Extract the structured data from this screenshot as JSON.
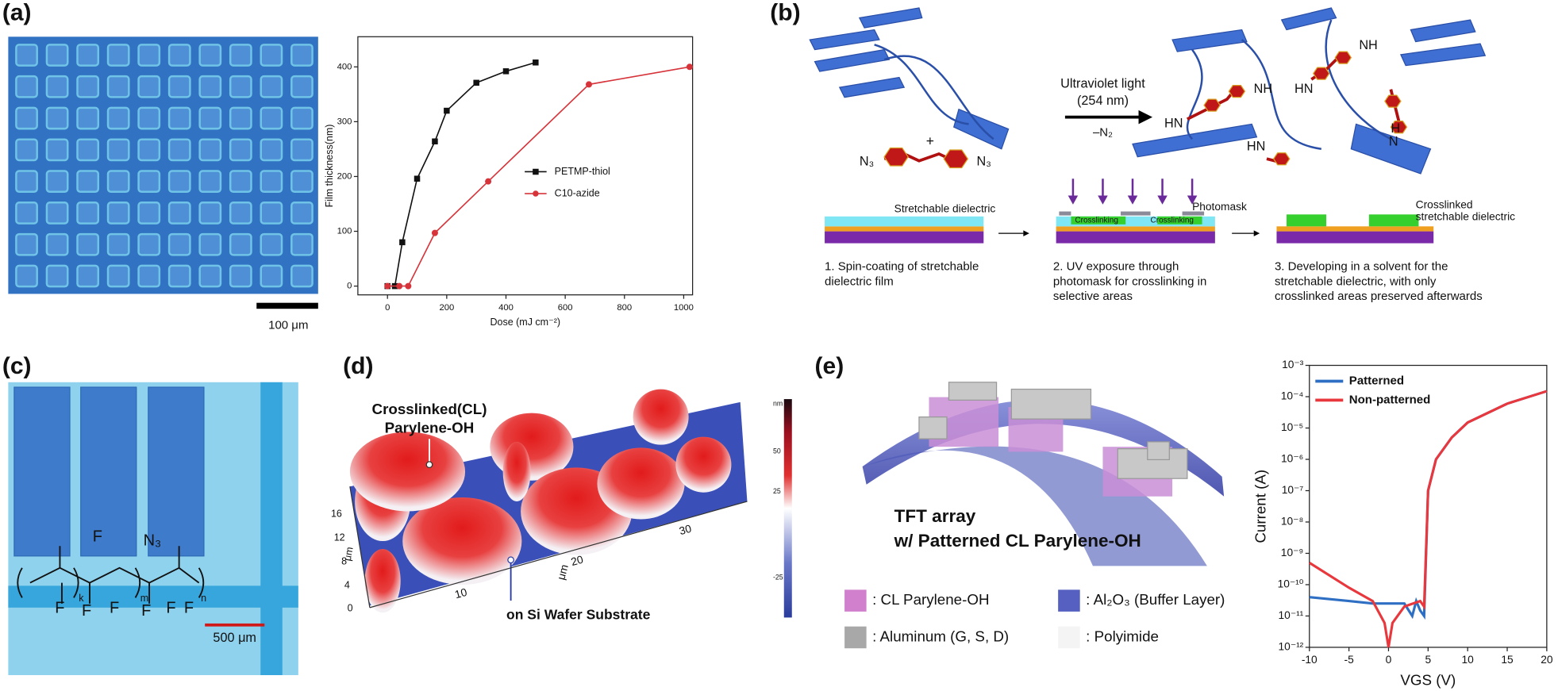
{
  "panel_labels": [
    "(a)",
    "(b)",
    "(c)",
    "(d)",
    "(e)"
  ],
  "a": {
    "scale_bar": "100 μm"
  },
  "b": {
    "ultraviolet": "Ultraviolet light",
    "wavelength": "(254 nm)",
    "loss": "–N₂",
    "plus": "+",
    "n3_left": "N₃",
    "n3_right": "N₃",
    "amines": [
      "NH",
      "NH",
      "HN",
      "HN",
      "HN",
      "H",
      "N"
    ],
    "layer_left": "Stretchable dielectric",
    "crosslinking": [
      "Crosslinking",
      "Crosslinking"
    ],
    "photomask": "Photomask",
    "layer_right": [
      "Crosslinked",
      "stretchable dielectric"
    ],
    "steps": [
      [
        "1. Spin-coating of stretchable",
        "dielectric film"
      ],
      [
        "2. UV exposure through",
        "photomask for crosslinking in",
        "selective areas"
      ],
      [
        "3. Developing in a solvent for the",
        "stretchable dielectric, with only",
        "crosslinked areas preserved afterwards"
      ]
    ]
  },
  "c": {
    "scale_bar": "500 μm",
    "atoms": [
      "F",
      "N₃",
      "F",
      "F",
      "F",
      "F",
      "F",
      "F"
    ],
    "subscripts": [
      "k",
      "m",
      "n"
    ]
  },
  "d": {
    "cl_label": [
      "Crosslinked(CL)",
      "Parylene-OH"
    ],
    "substrate_label": "on Si Wafer Substrate",
    "y_ticks": [
      "16",
      "12",
      "8",
      "4",
      "0"
    ],
    "y_unit": "μm",
    "x_ticks": [
      "10",
      "20",
      "30"
    ],
    "x_unit": "μm",
    "colorbar_unit": "nm",
    "colorbar_ticks": [
      "50",
      "25",
      "-25"
    ]
  },
  "e": {
    "caption": [
      "TFT array",
      "w/ Patterned CL Parylene-OH"
    ],
    "legend": [
      ": CL Parylene-OH",
      ": Aluminum (G, S, D)",
      ": Al₂O₃ (Buffer Layer)",
      ": Polyimide"
    ]
  },
  "chart_data": [
    {
      "type": "line",
      "xlabel": "Dose (mJ cm⁻²)",
      "ylabel": "Film thickness(nm)",
      "xlim": [
        -100,
        1030
      ],
      "ylim": [
        -16,
        455
      ],
      "xticks": [
        0,
        200,
        400,
        600,
        800,
        1000
      ],
      "yticks": [
        0,
        100,
        200,
        300,
        400
      ],
      "legend": "right",
      "series": [
        {
          "name": "PETMP-thiol",
          "color": "#111111",
          "marker": "square",
          "x": [
            0,
            25,
            50,
            100,
            160,
            200,
            300,
            400,
            500
          ],
          "values": [
            0,
            0,
            80,
            196,
            264,
            320,
            371,
            392,
            408
          ]
        },
        {
          "name": "C10-azide",
          "color": "#d6343a",
          "marker": "circle",
          "x": [
            0,
            40,
            70,
            160,
            340,
            680,
            1020
          ],
          "values": [
            0,
            0,
            0,
            97,
            191,
            368,
            400
          ]
        }
      ]
    },
    {
      "type": "line",
      "xlabel": "VGS (V)",
      "ylabel": "Current (A)",
      "log_y": true,
      "xlim": [
        -10,
        20
      ],
      "ylim": [
        1e-12,
        0.001
      ],
      "xticks": [
        -10,
        -5,
        0,
        5,
        10,
        15,
        20
      ],
      "yticks": [
        {
          "value": 1e-12,
          "label": "10⁻¹²"
        },
        {
          "value": 1e-11,
          "label": "10⁻¹¹"
        },
        {
          "value": 1e-10,
          "label": "10⁻¹⁰"
        },
        {
          "value": 1e-09,
          "label": "10⁻⁹"
        },
        {
          "value": 1e-08,
          "label": "10⁻⁸"
        },
        {
          "value": 1e-07,
          "label": "10⁻⁷"
        },
        {
          "value": 1e-06,
          "label": "10⁻⁶"
        },
        {
          "value": 1e-05,
          "label": "10⁻⁵"
        },
        {
          "value": 0.0001,
          "label": "10⁻⁴"
        },
        {
          "value": 0.001,
          "label": "10⁻³"
        }
      ],
      "legend": "upper left",
      "series": [
        {
          "name": "Patterned",
          "color": "#2e6fc4",
          "x": [
            -10,
            -5,
            -2,
            0,
            2,
            3,
            3.5,
            4,
            4.5,
            5,
            6,
            8,
            10,
            15,
            20
          ],
          "values": [
            4e-11,
            3e-11,
            2.5e-11,
            2.5e-11,
            2.5e-11,
            1e-11,
            3e-11,
            1.5e-11,
            1e-11,
            1e-07,
            1e-06,
            5e-06,
            1.5e-05,
            6e-05,
            0.00015
          ]
        },
        {
          "name": "Non-patterned",
          "color": "#e8383d",
          "x": [
            -10,
            -5,
            -2,
            -0.5,
            0,
            0.5,
            2,
            4,
            4.5,
            5,
            6,
            8,
            10,
            15,
            20
          ],
          "values": [
            5e-10,
            8e-11,
            3e-11,
            6e-12,
            1e-12,
            6e-12,
            2e-11,
            3e-11,
            2e-11,
            1e-07,
            1e-06,
            5e-06,
            1.5e-05,
            6e-05,
            0.00015
          ]
        }
      ]
    }
  ]
}
